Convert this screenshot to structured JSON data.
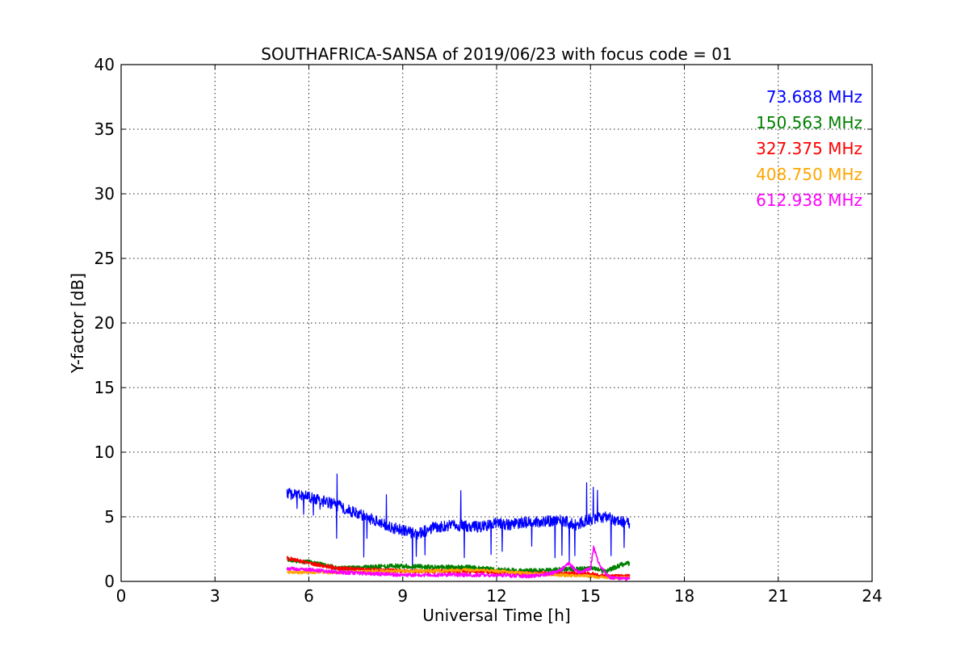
{
  "chart_data": {
    "type": "line",
    "title": "SOUTHAFRICA-SANSA of 2019/06/23 with focus code = 01",
    "xlabel": "Universal Time [h]",
    "ylabel": "Y-factor [dB]",
    "xlim": [
      0,
      24
    ],
    "ylim": [
      0,
      40
    ],
    "xticks": [
      0,
      3,
      6,
      9,
      12,
      15,
      18,
      21,
      24
    ],
    "yticks": [
      0,
      5,
      10,
      15,
      20,
      25,
      30,
      35,
      40
    ],
    "xtick_labels": [
      "0",
      "3",
      "6",
      "9",
      "12",
      "15",
      "18",
      "21",
      "24"
    ],
    "ytick_labels": [
      "0",
      "5",
      "10",
      "15",
      "20",
      "25",
      "30",
      "35",
      "40"
    ],
    "grid": true,
    "legend_position": "top-right",
    "series": [
      {
        "name": "73.688 MHz",
        "color": "#0000ff",
        "x": [
          5.3,
          5.6,
          6.0,
          6.5,
          7.0,
          7.5,
          8.0,
          8.5,
          9.0,
          9.5,
          10.0,
          10.5,
          11.0,
          11.5,
          12.0,
          12.5,
          13.0,
          13.5,
          14.0,
          14.5,
          15.0,
          15.5,
          16.0,
          16.25
        ],
        "values": [
          6.8,
          6.7,
          6.5,
          6.2,
          5.8,
          5.3,
          4.8,
          4.3,
          3.9,
          3.7,
          4.2,
          4.3,
          4.3,
          4.2,
          4.5,
          4.4,
          4.6,
          4.6,
          4.8,
          4.4,
          4.8,
          5.0,
          4.6,
          4.5
        ]
      },
      {
        "name": "150.563 MHz",
        "color": "#008000",
        "x": [
          5.3,
          6.0,
          7.0,
          8.0,
          9.0,
          10.0,
          11.0,
          12.0,
          13.0,
          14.0,
          15.0,
          15.5,
          16.0,
          16.25
        ],
        "values": [
          1.7,
          1.5,
          1.0,
          1.1,
          1.2,
          1.1,
          1.1,
          0.9,
          0.8,
          0.9,
          1.0,
          0.8,
          1.3,
          1.4
        ]
      },
      {
        "name": "327.375 MHz",
        "color": "#ff0000",
        "x": [
          5.3,
          6.0,
          7.0,
          8.0,
          9.0,
          10.0,
          11.0,
          12.0,
          13.0,
          14.0,
          15.0,
          15.5,
          16.0,
          16.25
        ],
        "values": [
          1.8,
          1.4,
          1.0,
          0.9,
          0.8,
          0.8,
          0.8,
          0.7,
          0.6,
          0.6,
          0.6,
          0.4,
          0.4,
          0.4
        ]
      },
      {
        "name": "408.750 MHz",
        "color": "#ffa500",
        "x": [
          5.3,
          6.0,
          7.0,
          8.0,
          9.0,
          10.0,
          11.0,
          12.0,
          13.0,
          14.0,
          15.0,
          15.5,
          16.0,
          16.25
        ],
        "values": [
          0.7,
          0.7,
          0.7,
          0.8,
          0.8,
          0.8,
          0.9,
          0.8,
          0.6,
          0.5,
          0.4,
          0.3,
          0.3,
          0.3
        ]
      },
      {
        "name": "612.938 MHz",
        "color": "#ff00ff",
        "x": [
          5.3,
          6.0,
          7.0,
          8.0,
          9.0,
          10.0,
          11.0,
          12.0,
          13.0,
          13.5,
          14.0,
          14.3,
          14.6,
          15.0,
          15.1,
          15.3,
          15.6,
          16.0,
          16.25
        ],
        "values": [
          1.0,
          0.9,
          0.7,
          0.6,
          0.5,
          0.5,
          0.5,
          0.5,
          0.4,
          0.5,
          0.8,
          1.4,
          0.7,
          1.0,
          2.6,
          1.2,
          0.3,
          0.2,
          0.2
        ]
      }
    ]
  }
}
